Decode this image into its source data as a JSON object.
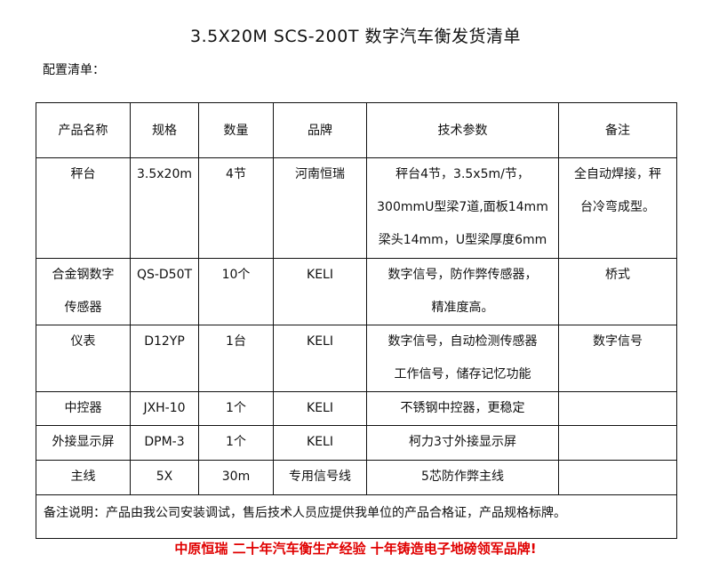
{
  "title": "3.5X20M SCS-200T 数字汽车衡发货清单",
  "subtitle": "配置清单：",
  "headers": [
    "产品名称",
    "规格",
    "数量",
    "品牌",
    "技术参数",
    "备注"
  ],
  "rows": [
    {
      "name": [
        "秤台"
      ],
      "spec": "3.5x20m",
      "qty": "4节",
      "brand": "河南恒瑞",
      "tech": [
        "秤台4节，3.5x5m/节，",
        "300mmU型梁7道,面板14mm",
        "梁头14mm，U型梁厚度6mm"
      ],
      "remark": [
        "全自动焊接，秤",
        "台冷弯成型。"
      ]
    },
    {
      "name": [
        "合金钢数字",
        "传感器"
      ],
      "spec": "QS-D50T",
      "qty": "10个",
      "brand": "KELI",
      "tech": [
        "数字信号，防作弊传感器，",
        "精准度高。"
      ],
      "remark": [
        "桥式"
      ]
    },
    {
      "name": [
        "仪表"
      ],
      "spec": "D12YP",
      "qty": "1台",
      "brand": "KELI",
      "tech": [
        "数字信号，自动检测传感器",
        "工作信号，储存记忆功能"
      ],
      "remark": [
        "数字信号"
      ]
    },
    {
      "name": [
        "中控器"
      ],
      "spec": "JXH-10",
      "qty": "1个",
      "brand": "KELI",
      "tech": [
        "不锈钢中控器，更稳定"
      ],
      "remark": []
    },
    {
      "name": [
        "外接显示屏"
      ],
      "spec": "DPM-3",
      "qty": "1个",
      "brand": "KELI",
      "tech": [
        "柯力3寸外接显示屏"
      ],
      "remark": []
    },
    {
      "name": [
        "主线"
      ],
      "spec": "5X",
      "qty": "30m",
      "brand": "专用信号线",
      "tech": [
        "5芯防作弊主线"
      ],
      "remark": []
    }
  ],
  "note": "备注说明：产品由我公司安装调试，售后技术人员应提供我单位的产品合格证，产品规格标牌。",
  "slogan": "中原恒瑞 二十年汽车衡生产经验 十年铸造电子地磅领军品牌!",
  "slogan_color": "#e00000"
}
